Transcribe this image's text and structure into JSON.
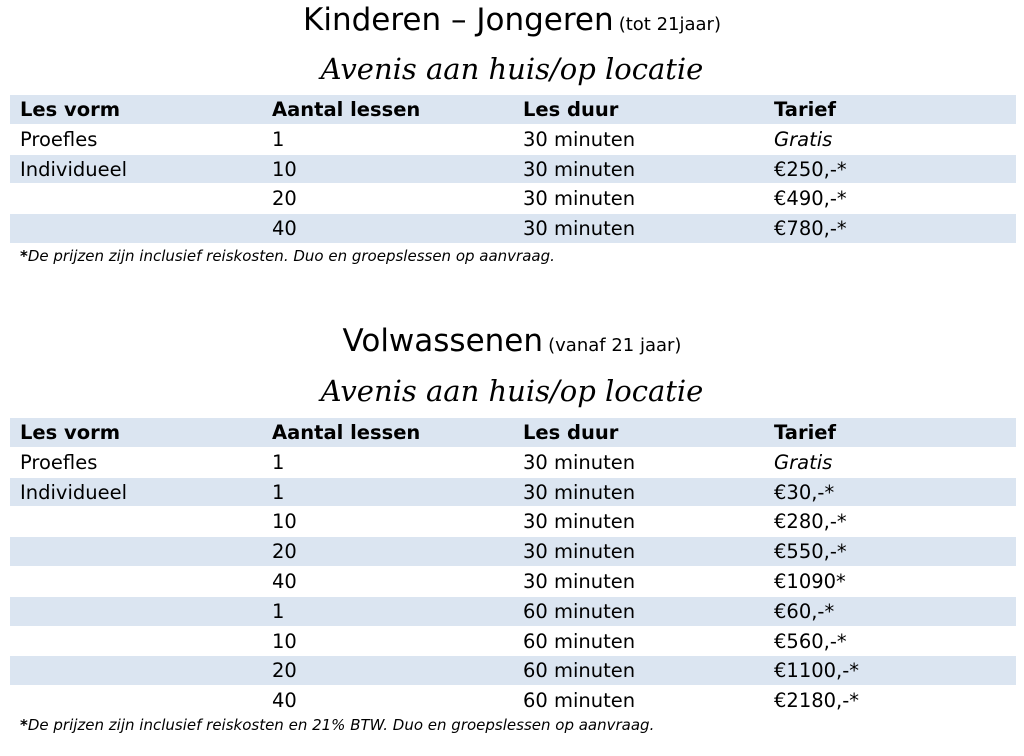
{
  "kids": {
    "title": "Kinderen – Jongeren",
    "title_sub": "(tot 21jaar)",
    "subtitle": "Avenis aan huis/op locatie",
    "headers": [
      "Les vorm",
      "Aantal lessen",
      "Les duur",
      "Tarief"
    ],
    "rows": [
      [
        "Proefles",
        "1",
        "30 minuten",
        "Gratis"
      ],
      [
        "Individueel",
        "10",
        "30 minuten",
        "€250,-*"
      ],
      [
        "",
        "20",
        "30 minuten",
        "€490,-*"
      ],
      [
        "",
        "40",
        "30 minuten",
        "€780,-*"
      ]
    ],
    "note_star": "*",
    "note": "De prijzen zijn inclusief reiskosten. Duo en groepslessen op aanvraag."
  },
  "adults": {
    "title": "Volwassenen",
    "title_sub": "(vanaf 21 jaar)",
    "subtitle": "Avenis aan huis/op locatie",
    "headers": [
      "Les vorm",
      "Aantal lessen",
      "Les duur",
      "Tarief"
    ],
    "rows": [
      [
        "Proefles",
        "1",
        "30 minuten",
        "Gratis"
      ],
      [
        "Individueel",
        "1",
        "30 minuten",
        "€30,-*"
      ],
      [
        "",
        "10",
        "30 minuten",
        "€280,-*"
      ],
      [
        "",
        "20",
        "30 minuten",
        "€550,-*"
      ],
      [
        "",
        "40",
        "30 minuten",
        "€1090*"
      ],
      [
        "",
        "1",
        "60 minuten",
        "€60,-*"
      ],
      [
        "",
        "10",
        "60 minuten",
        "€560,-*"
      ],
      [
        "",
        "20",
        "60 minuten",
        "€1100,-*"
      ],
      [
        "",
        "40",
        "60 minuten",
        "€2180,-*"
      ]
    ],
    "note_star": "*",
    "note": "De prijzen zijn inclusief reiskosten en 21% BTW. Duo en groepslessen op aanvraag."
  },
  "colors": {
    "row_shade": "#dbe5f1",
    "text": "#000000"
  }
}
